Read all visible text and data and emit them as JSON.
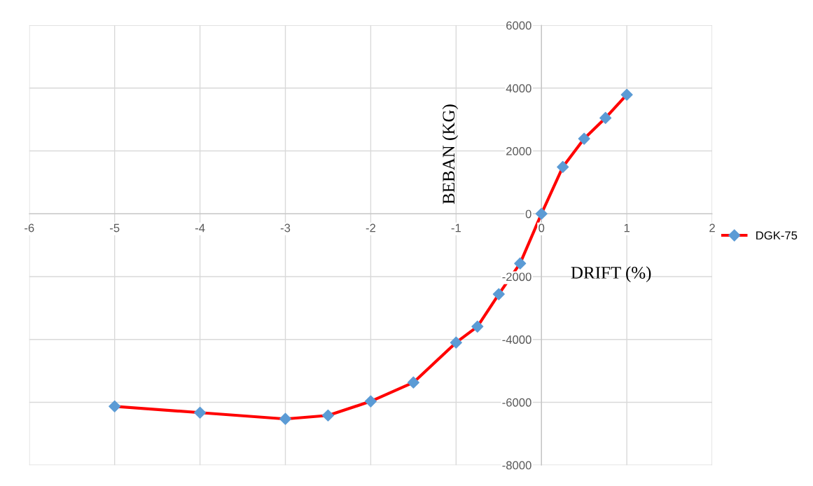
{
  "chart_data": {
    "type": "line",
    "xlabel": "DRIFT (%)",
    "ylabel": "BEBAN (KG)",
    "series": [
      {
        "name": "DGK-75",
        "color": "#ff0000",
        "colors": [
          "#5b9bd5",
          "#5b9bd5",
          "#5b9bd5",
          "#5b9bd5",
          "#5b9bd5",
          "#5b9bd5",
          "#5b9bd5",
          "#5b9bd5",
          "#5b9bd5",
          "#5b9bd5",
          "#5b9bd5",
          "#5b9bd5",
          "#5b9bd5",
          "#5b9bd5",
          "#5b9bd5"
        ],
        "x": [
          -5,
          -4,
          -3,
          -2.5,
          -2,
          -1.5,
          -1,
          -0.75,
          -0.5,
          -0.25,
          0,
          0.25,
          0.5,
          0.75,
          1
        ],
        "values": [
          -6130,
          -6330,
          -6530,
          -6420,
          -5970,
          -5370,
          -4100,
          -3590,
          -2560,
          -1580,
          0,
          1490,
          2390,
          3050,
          3790
        ]
      }
    ],
    "xlim": [
      -6,
      2
    ],
    "xticks": [
      -6,
      -5,
      -4,
      -3,
      -2,
      -1,
      0,
      1,
      2
    ],
    "ylim": [
      -8000,
      6000
    ],
    "yticks": [
      -8000,
      -6000,
      -4000,
      -2000,
      0,
      2000,
      4000,
      6000
    ],
    "grid": true,
    "legend": "right",
    "marker": "diamond",
    "line_style": "solid"
  }
}
